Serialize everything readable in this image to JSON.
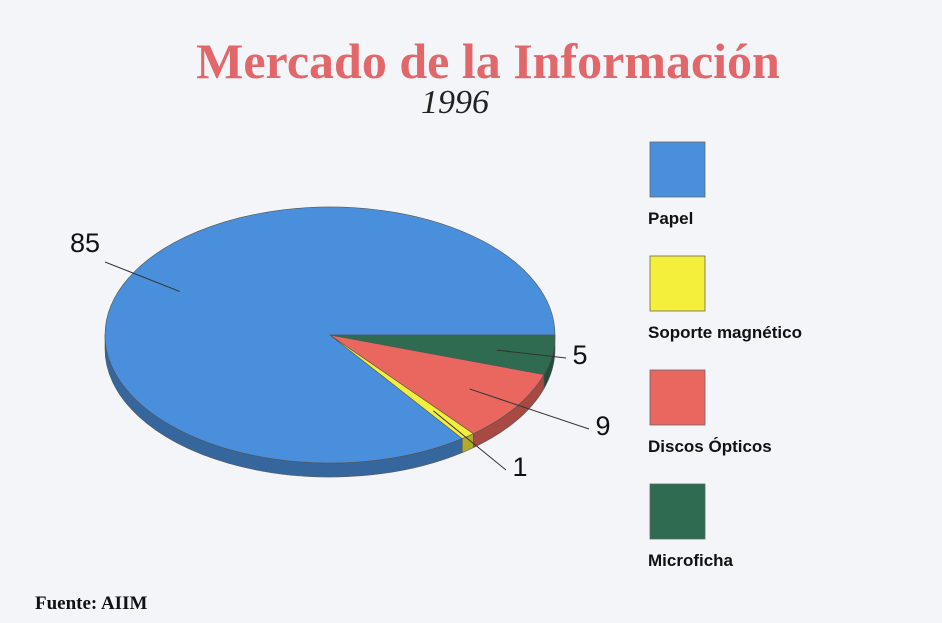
{
  "chart_data": {
    "type": "pie",
    "title": "Mercado de la Información",
    "subtitle": "1996",
    "categories": [
      "Papel",
      "Soporte magnético",
      "Discos Ópticos",
      "Microficha"
    ],
    "values": [
      85,
      1,
      9,
      5
    ],
    "colors": [
      "#4a8fdc",
      "#f4ef3a",
      "#e9675f",
      "#2f6b50"
    ],
    "source": "Fuente: AIIM"
  }
}
